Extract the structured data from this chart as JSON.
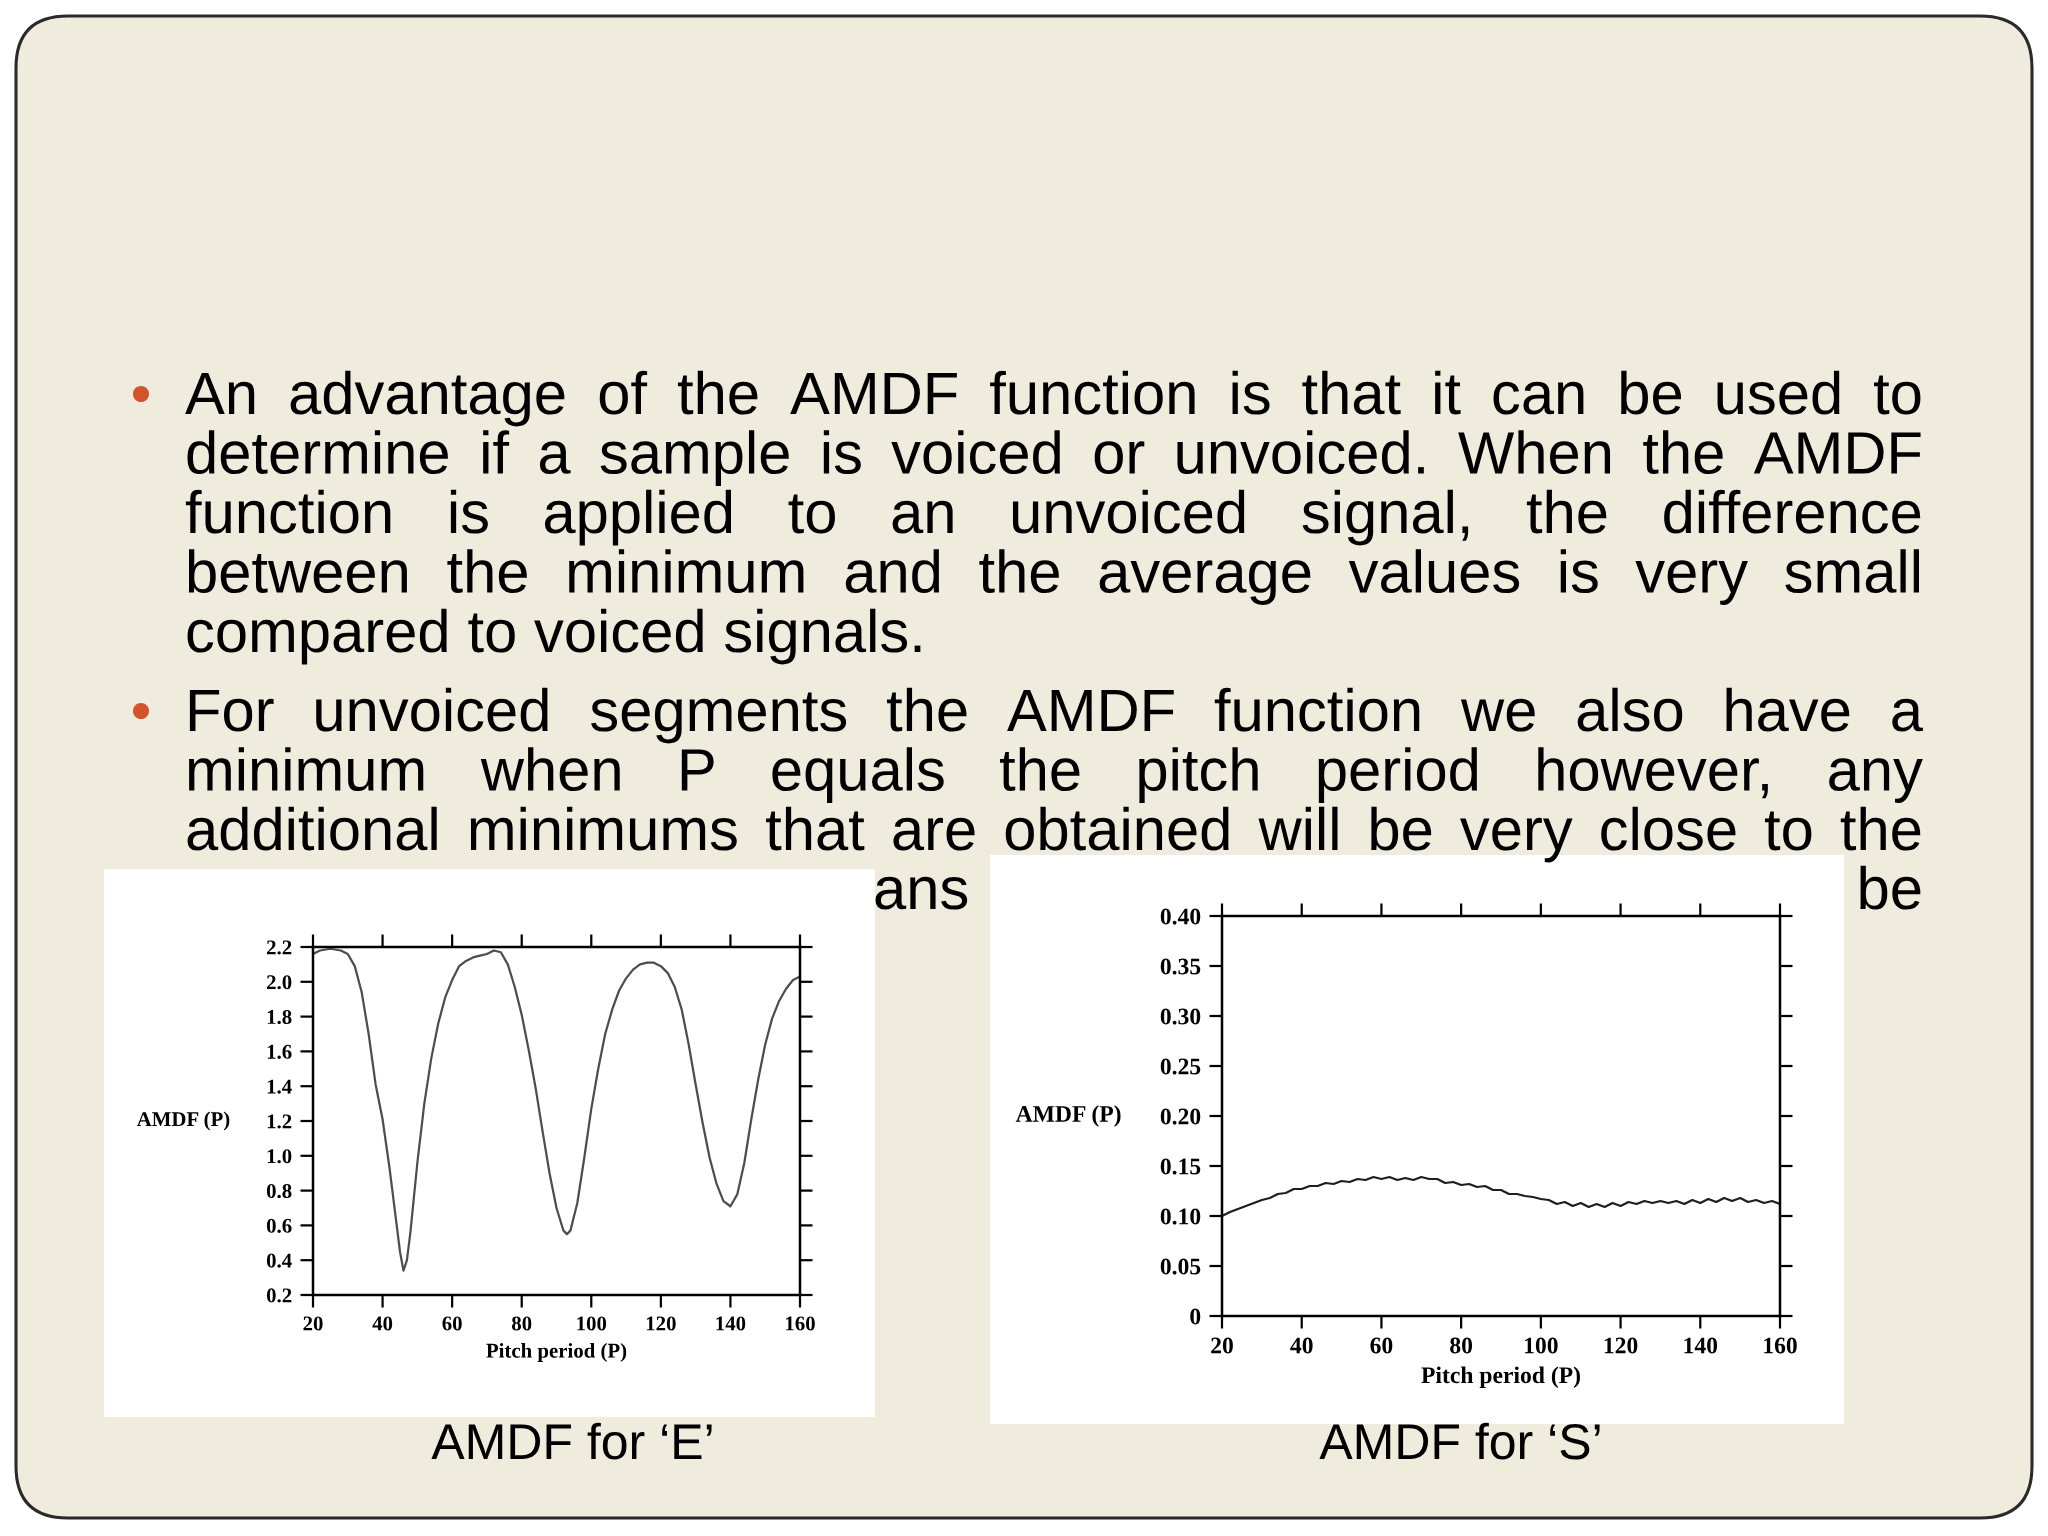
{
  "chart_data": [
    {
      "type": "other",
      "annotations": [
        "An advantage of the AMDF function is that it can be used to\ndetermine if a sample is voiced or unvoiced. When the AMDF\nfunction is applied to an unvoiced signal, the difference\nbetween the minimum and the average values is very small\ncompared to voiced signals.",
        "For unvoiced segments the AMDF function we also have a\nminimum when P equals the pitch period however, any\nadditional minimums that are obtained will be very close to the",
        "ans",
        "be"
      ]
    },
    {
      "type": "line",
      "xlabel": "Pitch period (P)",
      "ylabel": "AMDF (P)",
      "x": [
        20,
        22,
        25,
        28,
        30,
        32,
        34,
        36,
        38,
        40,
        42,
        44,
        45,
        46,
        47,
        48,
        50,
        52,
        54,
        56,
        58,
        60,
        62,
        64,
        66,
        68,
        70,
        72,
        74,
        76,
        78,
        80,
        82,
        84,
        86,
        88,
        90,
        92,
        93,
        94,
        96,
        98,
        100,
        102,
        104,
        106,
        108,
        110,
        112,
        114,
        116,
        118,
        120,
        122,
        124,
        126,
        128,
        130,
        132,
        134,
        136,
        138,
        140,
        142,
        144,
        146,
        148,
        150,
        152,
        154,
        156,
        158,
        160
      ],
      "series": [
        {
          "color": "#4d4d4d",
          "values": [
            2.16,
            2.18,
            2.19,
            2.18,
            2.16,
            2.09,
            1.94,
            1.7,
            1.41,
            1.21,
            0.93,
            0.61,
            0.45,
            0.34,
            0.4,
            0.56,
            0.96,
            1.3,
            1.56,
            1.76,
            1.91,
            2.01,
            2.09,
            2.12,
            2.14,
            2.15,
            2.16,
            2.18,
            2.17,
            2.1,
            1.97,
            1.81,
            1.61,
            1.39,
            1.14,
            0.9,
            0.7,
            0.57,
            0.55,
            0.57,
            0.73,
            0.99,
            1.27,
            1.5,
            1.7,
            1.84,
            1.95,
            2.02,
            2.07,
            2.1,
            2.11,
            2.11,
            2.09,
            2.05,
            1.97,
            1.84,
            1.64,
            1.41,
            1.19,
            0.99,
            0.84,
            0.74,
            0.71,
            0.78,
            0.96,
            1.21,
            1.44,
            1.64,
            1.79,
            1.89,
            1.96,
            2.01,
            2.03
          ]
        }
      ],
      "xlim": [
        20,
        160
      ],
      "ylim": [
        0.2,
        2.2
      ],
      "xticks": [
        20,
        40,
        60,
        80,
        100,
        120,
        140,
        160
      ],
      "yticks": [
        0.2,
        0.4,
        0.6,
        0.8,
        {
          "value": 1.0,
          "label": "1.0"
        },
        1.2,
        1.4,
        1.6,
        1.8,
        {
          "value": 2.0,
          "label": "2.0"
        },
        2.2
      ],
      "annotations": [
        "AMDF for ‘E’"
      ]
    },
    {
      "type": "line",
      "xlabel": "Pitch period (P)",
      "ylabel": "AMDF (P)",
      "x": [
        20,
        22,
        24,
        26,
        28,
        30,
        32,
        34,
        36,
        38,
        40,
        42,
        44,
        46,
        48,
        50,
        52,
        54,
        56,
        58,
        60,
        62,
        64,
        66,
        68,
        70,
        72,
        74,
        76,
        78,
        80,
        82,
        84,
        86,
        88,
        90,
        92,
        94,
        96,
        98,
        100,
        102,
        104,
        106,
        108,
        110,
        112,
        114,
        116,
        118,
        120,
        122,
        124,
        126,
        128,
        130,
        132,
        134,
        136,
        138,
        140,
        142,
        144,
        146,
        148,
        150,
        152,
        154,
        156,
        158,
        160
      ],
      "series": [
        {
          "color": "#1e1e1e",
          "values": [
            0.1,
            0.104,
            0.107,
            0.11,
            0.113,
            0.116,
            0.118,
            0.122,
            0.123,
            0.127,
            0.127,
            0.13,
            0.13,
            0.133,
            0.132,
            0.135,
            0.134,
            0.137,
            0.136,
            0.139,
            0.137,
            0.139,
            0.136,
            0.138,
            0.136,
            0.139,
            0.137,
            0.137,
            0.133,
            0.134,
            0.131,
            0.132,
            0.129,
            0.13,
            0.126,
            0.126,
            0.122,
            0.122,
            0.12,
            0.119,
            0.117,
            0.116,
            0.112,
            0.114,
            0.11,
            0.113,
            0.109,
            0.112,
            0.109,
            0.113,
            0.11,
            0.114,
            0.112,
            0.115,
            0.113,
            0.115,
            0.113,
            0.115,
            0.112,
            0.116,
            0.113,
            0.117,
            0.114,
            0.118,
            0.115,
            0.118,
            0.114,
            0.116,
            0.113,
            0.115,
            0.112
          ]
        }
      ],
      "xlim": [
        20,
        160
      ],
      "ylim": [
        0,
        0.4
      ],
      "xticks": [
        20,
        40,
        60,
        80,
        100,
        120,
        140,
        160
      ],
      "yticks": [
        0,
        0.05,
        {
          "value": 0.1,
          "label": "0.10"
        },
        0.15,
        {
          "value": 0.2,
          "label": "0.20"
        },
        0.25,
        {
          "value": 0.3,
          "label": "0.30"
        },
        0.35,
        {
          "value": 0.4,
          "label": "0.40"
        }
      ],
      "annotations": [
        "AMDF for ‘S’"
      ]
    }
  ]
}
